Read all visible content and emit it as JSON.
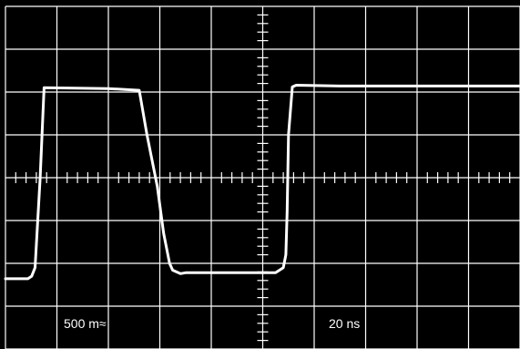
{
  "scope": {
    "volts_per_div_label": "500 m≈",
    "time_per_div_label": "20 ns"
  },
  "colors": {
    "background": "#000000",
    "grid": "#ffffff",
    "trace": "#ffffff"
  },
  "chart_data": {
    "type": "line",
    "title": "",
    "xlabel": "",
    "ylabel": "",
    "grid": true,
    "divisions": {
      "x": 10,
      "y": 8
    },
    "minor_ticks_per_division": 5,
    "x_unit": "ns",
    "y_unit": "V",
    "x_per_div": 20,
    "y_per_div": 0.5,
    "xlim": [
      -100,
      100
    ],
    "ylim": [
      -2,
      2
    ],
    "series": [
      {
        "x": [
          -100,
          -91.3,
          -89.8,
          -88.5,
          -86.5,
          -85.0,
          -60.0,
          -48.0,
          -45.0,
          -41.0,
          -38.5,
          -36.2,
          -35.0,
          -32.0,
          -30.0,
          -10.0,
          5.0,
          8.0,
          9.0,
          9.5,
          10.0,
          11.5,
          13.0,
          30.0,
          60.0,
          100
        ],
        "y": [
          -1.18,
          -1.18,
          -1.15,
          -1.05,
          0.0,
          1.05,
          1.04,
          1.02,
          0.5,
          -0.1,
          -0.65,
          -1.0,
          -1.08,
          -1.12,
          -1.11,
          -1.11,
          -1.11,
          -1.05,
          -0.9,
          -0.4,
          0.5,
          1.06,
          1.08,
          1.07,
          1.07,
          1.07
        ]
      }
    ]
  }
}
